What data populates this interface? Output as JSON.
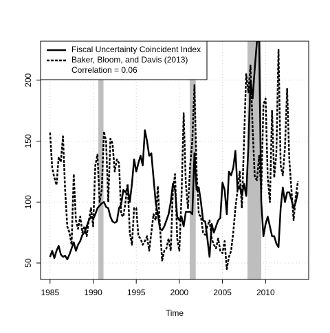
{
  "chart_data": {
    "type": "line",
    "xlabel": "Time",
    "x": [
      1985,
      1985.25,
      1985.5,
      1985.75,
      1986,
      1986.25,
      1986.5,
      1986.75,
      1987,
      1987.25,
      1987.5,
      1987.75,
      1988,
      1988.25,
      1988.5,
      1988.75,
      1989,
      1989.25,
      1989.5,
      1989.75,
      1990,
      1990.25,
      1990.5,
      1990.75,
      1991,
      1991.25,
      1991.5,
      1991.75,
      1992,
      1992.25,
      1992.5,
      1992.75,
      1993,
      1993.25,
      1993.5,
      1993.75,
      1994,
      1994.25,
      1994.5,
      1994.75,
      1995,
      1995.25,
      1995.5,
      1995.75,
      1996,
      1996.25,
      1996.5,
      1996.75,
      1997,
      1997.25,
      1997.5,
      1997.75,
      1998,
      1998.25,
      1998.5,
      1998.75,
      1999,
      1999.25,
      1999.5,
      1999.75,
      2000,
      2000.25,
      2000.5,
      2000.75,
      2001,
      2001.25,
      2001.5,
      2001.75,
      2002,
      2002.25,
      2002.5,
      2002.75,
      2003,
      2003.25,
      2003.5,
      2003.75,
      2004,
      2004.25,
      2004.5,
      2004.75,
      2005,
      2005.25,
      2005.5,
      2005.75,
      2006,
      2006.25,
      2006.5,
      2006.75,
      2007,
      2007.25,
      2007.5,
      2007.75,
      2008,
      2008.25,
      2008.5,
      2008.75,
      2009,
      2009.25,
      2009.5,
      2009.75,
      2010,
      2010.25,
      2010.5,
      2010.75,
      2011,
      2011.25,
      2011.5,
      2011.75,
      2012,
      2012.25,
      2012.5,
      2012.75,
      2013,
      2013.25,
      2013.5,
      2013.75
    ],
    "series": [
      {
        "name": "Fiscal Uncertainty Coincident Index",
        "color": "#000000",
        "dash": false,
        "values": [
          55,
          60,
          54,
          60,
          64,
          57,
          55,
          56,
          53,
          57,
          62,
          67,
          60,
          65,
          68,
          73,
          75,
          80,
          85,
          88,
          86,
          90,
          95,
          97,
          99,
          100,
          96,
          95,
          88,
          84,
          83,
          84,
          95,
          98,
          110,
          108,
          112,
          100,
          115,
          135,
          125,
          132,
          138,
          130,
          159,
          150,
          138,
          140,
          120,
          100,
          90,
          78,
          77,
          80,
          85,
          90,
          100,
          115,
          110,
          88,
          85,
          88,
          80,
          92,
          92,
          92,
          90,
          140,
          110,
          112,
          100,
          85,
          84,
          70,
          55,
          82,
          75,
          80,
          85,
          87,
          116,
          110,
          90,
          125,
          122,
          128,
          142,
          110,
          113,
          105,
          115,
          105,
          145,
          200,
          185,
          210,
          232,
          232,
          100,
          72,
          82,
          88,
          80,
          72,
          72,
          66,
          63,
          95,
          112,
          100,
          108,
          108,
          102,
          95,
          100,
          108
        ]
      },
      {
        "name": "Baker, Bloom, and Davis (2013)",
        "color": "#000000",
        "dash": true,
        "values": [
          157,
          128,
          120,
          114,
          137,
          133,
          154,
          110,
          80,
          75,
          65,
          123,
          85,
          78,
          88,
          75,
          80,
          72,
          85,
          95,
          80,
          130,
          139,
          100,
          110,
          158,
          150,
          100,
          152,
          148,
          125,
          135,
          132,
          90,
          88,
          100,
          115,
          75,
          65,
          95,
          95,
          72,
          70,
          65,
          68,
          72,
          60,
          75,
          90,
          85,
          113,
          80,
          52,
          60,
          62,
          70,
          60,
          110,
          123,
          70,
          60,
          105,
          173,
          115,
          95,
          130,
          150,
          196,
          125,
          90,
          88,
          75,
          73,
          80,
          85,
          70,
          65,
          62,
          70,
          60,
          58,
          68,
          45,
          55,
          60,
          75,
          95,
          110,
          125,
          95,
          150,
          205,
          190,
          212,
          160,
          120,
          118,
          138,
          108,
          180,
          185,
          120,
          100,
          175,
          120,
          140,
          225,
          130,
          122,
          145,
          193,
          135,
          110,
          85,
          105,
          117
        ]
      }
    ],
    "legend_note": "Correlation = 0.06",
    "shaded_regions": [
      {
        "start": 1990.6,
        "end": 1991.2
      },
      {
        "start": 2001.2,
        "end": 2001.9
      },
      {
        "start": 2007.9,
        "end": 2009.5
      }
    ],
    "shade_color": "#bebebe",
    "xlim": [
      1983.9,
      2015.0
    ],
    "ylim": [
      36.5,
      232
    ],
    "xticks": [
      1985,
      1990,
      1995,
      2000,
      2005,
      2010
    ],
    "yticks": [
      50,
      100,
      150,
      200
    ],
    "grid": true,
    "legend": "top-left"
  }
}
